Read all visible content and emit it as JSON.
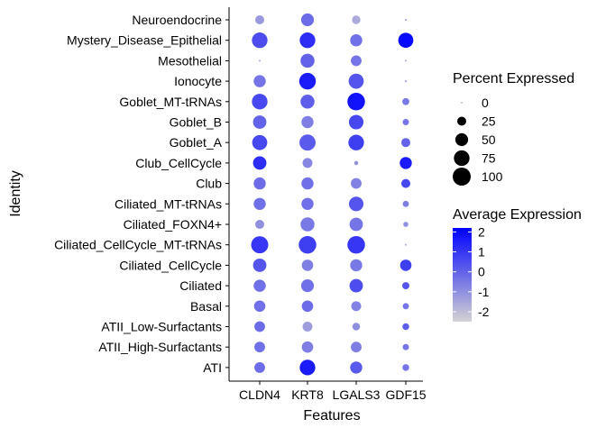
{
  "chart_data": {
    "type": "dotplot",
    "title": "",
    "xlabel": "Features",
    "ylabel": "Identity",
    "features": [
      "CLDN4",
      "KRT8",
      "LGALS3",
      "GDF15"
    ],
    "identities": [
      "Neuroendocrine",
      "Mystery_Disease_Epithelial",
      "Mesothelial",
      "Ionocyte",
      "Goblet_MT-tRNAs",
      "Goblet_B",
      "Goblet_A",
      "Club_CellCycle",
      "Club",
      "Ciliated_MT-tRNAs",
      "Ciliated_FOXN4+",
      "Ciliated_CellCycle_MT-tRNAs",
      "Ciliated_CellCycle",
      "Ciliated",
      "Basal",
      "ATII_Low-Surfactants",
      "ATII_High-Surfactants",
      "ATI"
    ],
    "percent_expressed": [
      [
        25,
        50,
        22,
        1
      ],
      [
        75,
        75,
        45,
        70
      ],
      [
        1,
        60,
        35,
        1
      ],
      [
        45,
        85,
        70,
        1
      ],
      [
        75,
        60,
        95,
        15
      ],
      [
        55,
        45,
        65,
        12
      ],
      [
        70,
        80,
        75,
        25
      ],
      [
        55,
        30,
        5,
        45
      ],
      [
        45,
        45,
        35,
        25
      ],
      [
        45,
        45,
        65,
        12
      ],
      [
        25,
        60,
        55,
        8
      ],
      [
        90,
        95,
        95,
        1
      ],
      [
        55,
        40,
        45,
        40
      ],
      [
        45,
        50,
        55,
        16
      ],
      [
        40,
        40,
        30,
        12
      ],
      [
        35,
        30,
        18,
        14
      ],
      [
        35,
        40,
        35,
        12
      ],
      [
        35,
        75,
        45,
        14
      ]
    ],
    "average_expression": [
      [
        -1.2,
        -0.2,
        -1.6,
        -1.0
      ],
      [
        0.5,
        1.2,
        -0.3,
        2.0
      ],
      [
        -1.5,
        0.0,
        -0.4,
        -1.5
      ],
      [
        -0.4,
        1.6,
        0.3,
        -1.0
      ],
      [
        0.6,
        0.1,
        1.8,
        -0.5
      ],
      [
        0.0,
        -0.6,
        0.6,
        -0.4
      ],
      [
        0.6,
        0.2,
        0.8,
        0.0
      ],
      [
        1.2,
        -0.8,
        -1.0,
        1.6
      ],
      [
        -0.2,
        -0.3,
        -0.7,
        0.6
      ],
      [
        -0.3,
        -0.3,
        0.3,
        -0.6
      ],
      [
        -1.0,
        -0.5,
        -0.4,
        -1.0
      ],
      [
        1.0,
        0.8,
        1.0,
        -1.5
      ],
      [
        0.3,
        -0.6,
        -0.5,
        0.8
      ],
      [
        -0.3,
        -0.3,
        0.5,
        0.3
      ],
      [
        -0.3,
        -0.2,
        -0.7,
        -0.4
      ],
      [
        -0.2,
        -1.3,
        -1.0,
        0.1
      ],
      [
        -0.3,
        -0.6,
        -0.6,
        -0.4
      ],
      [
        -0.2,
        1.6,
        0.2,
        -0.4
      ]
    ],
    "size_legend": {
      "title": "Percent Expressed",
      "values": [
        0,
        25,
        50,
        75,
        100
      ],
      "labels": [
        "0",
        "25",
        "50",
        "75",
        "100"
      ]
    },
    "color_legend": {
      "title": "Average Expression",
      "min": -2.5,
      "max": 2.2,
      "ticks": [
        2,
        1,
        0,
        -1,
        -2
      ],
      "tick_labels": [
        "2",
        "1",
        "0",
        "-1",
        "-2"
      ],
      "low_color": "#d3d3d3",
      "high_color": "#0000ff"
    },
    "grid": false,
    "legend_position": "right"
  }
}
